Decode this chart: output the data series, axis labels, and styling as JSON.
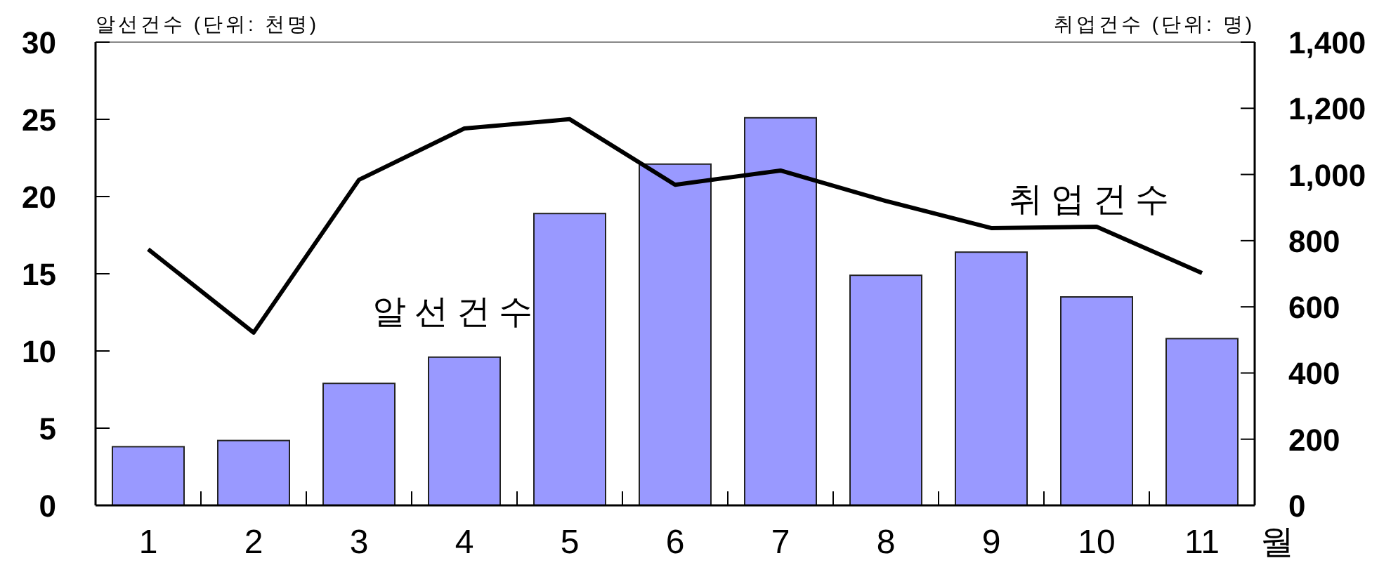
{
  "chart_data": {
    "type": "bar",
    "categories": [
      "1",
      "2",
      "3",
      "4",
      "5",
      "6",
      "7",
      "8",
      "9",
      "10",
      "11"
    ],
    "xlabel": "월",
    "ylabel": "알선건수 (단위: 천명)",
    "y2label": "취업건수 (단위: 명)",
    "series": [
      {
        "name": "알선건수",
        "color": "#9999ff",
        "values": [
          3.8,
          4.2,
          7.9,
          9.6,
          18.9,
          22.1,
          25.1,
          14.9,
          16.4,
          13.5,
          10.8
        ]
      },
      {
        "name": "취업건수",
        "type": "line",
        "axis": "y2",
        "color": "#000000",
        "values": [
          774,
          522,
          984,
          1139,
          1167,
          969,
          1012,
          920,
          838,
          842,
          702
        ]
      }
    ],
    "ylim": [
      0,
      30
    ],
    "yticks": [
      0,
      5,
      10,
      15,
      20,
      25,
      30
    ],
    "y2lim": [
      0,
      1400
    ],
    "y2ticks": [
      {
        "value": 0,
        "label": "0"
      },
      {
        "value": 200,
        "label": "200"
      },
      {
        "value": 400,
        "label": "400"
      },
      {
        "value": 600,
        "label": "600"
      },
      {
        "value": 800,
        "label": "800"
      },
      {
        "value": 1000,
        "label": "1,000"
      },
      {
        "value": 1200,
        "label": "1,200"
      },
      {
        "value": 1400,
        "label": "1,400"
      }
    ],
    "grid": false,
    "marker": "none",
    "line_style": "solid"
  }
}
